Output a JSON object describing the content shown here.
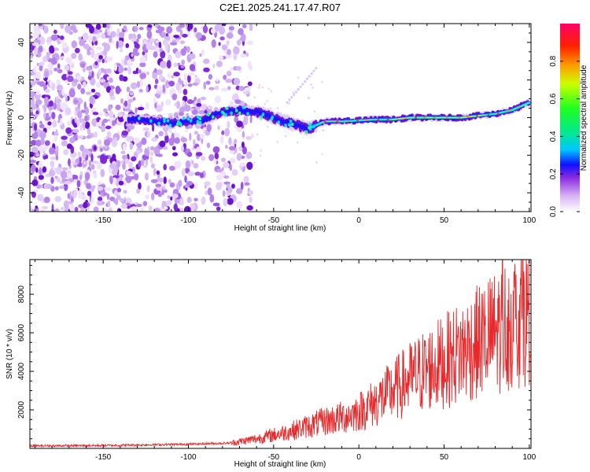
{
  "title": "C2E1.2025.241.17.47.R07",
  "chart_data": [
    {
      "type": "heatmap",
      "name": "spectrogram",
      "xlabel": "Height of straight line (km)",
      "ylabel": "Frequency (Hz)",
      "xlim": [
        -193,
        101
      ],
      "ylim": [
        -50,
        50
      ],
      "xticks": [
        -150,
        -100,
        -50,
        0,
        50,
        100
      ],
      "yticks": [
        -40,
        -20,
        0,
        20,
        40
      ],
      "xtick_labels": [
        "-150",
        "-100",
        "-50",
        "0",
        "50",
        "100"
      ],
      "ytick_labels": [
        "-40",
        "-20",
        "0",
        "20",
        "40"
      ],
      "colorbar": {
        "label": "Normalized spectral amplitude",
        "range": [
          0,
          1
        ],
        "ticks": [
          0.0,
          0.2,
          0.4,
          0.6,
          0.8
        ],
        "tick_labels": [
          "0.0",
          "0.2",
          "0.4",
          "0.6",
          "0.8"
        ]
      },
      "ridge": {
        "description": "dominant frequency track (height km, frequency Hz)",
        "x": [
          -130,
          -110,
          -90,
          -80,
          -70,
          -60,
          -50,
          -40,
          -30,
          -25,
          -20,
          -10,
          0,
          10,
          20,
          30,
          40,
          50,
          60,
          70,
          80,
          90,
          100
        ],
        "y": [
          -1,
          -3,
          -1,
          3,
          4,
          3,
          0,
          -3,
          -6,
          -4,
          -2,
          -2,
          -1.5,
          -1,
          -1,
          0,
          0,
          0,
          0,
          1,
          2,
          4,
          8
        ]
      }
    },
    {
      "type": "line",
      "name": "snr",
      "xlabel": "Height of straight line (km)",
      "ylabel": "SNR (10 * v/v)",
      "xlim": [
        -193,
        101
      ],
      "ylim": [
        0,
        9800
      ],
      "xticks": [
        -150,
        -100,
        -50,
        0,
        50,
        100
      ],
      "yticks": [
        2000,
        4000,
        6000,
        8000
      ],
      "xtick_labels": [
        "-150",
        "-100",
        "-50",
        "0",
        "50",
        "100"
      ],
      "ytick_labels": [
        "2000",
        "4000",
        "6000",
        "8000"
      ],
      "color": "#e8282a",
      "trend": {
        "x": [
          -193,
          -150,
          -100,
          -75,
          -60,
          -50,
          -40,
          -30,
          -20,
          -10,
          0,
          10,
          20,
          30,
          40,
          50,
          60,
          70,
          80,
          90,
          100
        ],
        "y": [
          130,
          150,
          220,
          280,
          500,
          700,
          900,
          1150,
          1400,
          1600,
          1900,
          2400,
          3000,
          3600,
          4100,
          4500,
          5000,
          5500,
          6000,
          6600,
          7200
        ]
      }
    }
  ]
}
